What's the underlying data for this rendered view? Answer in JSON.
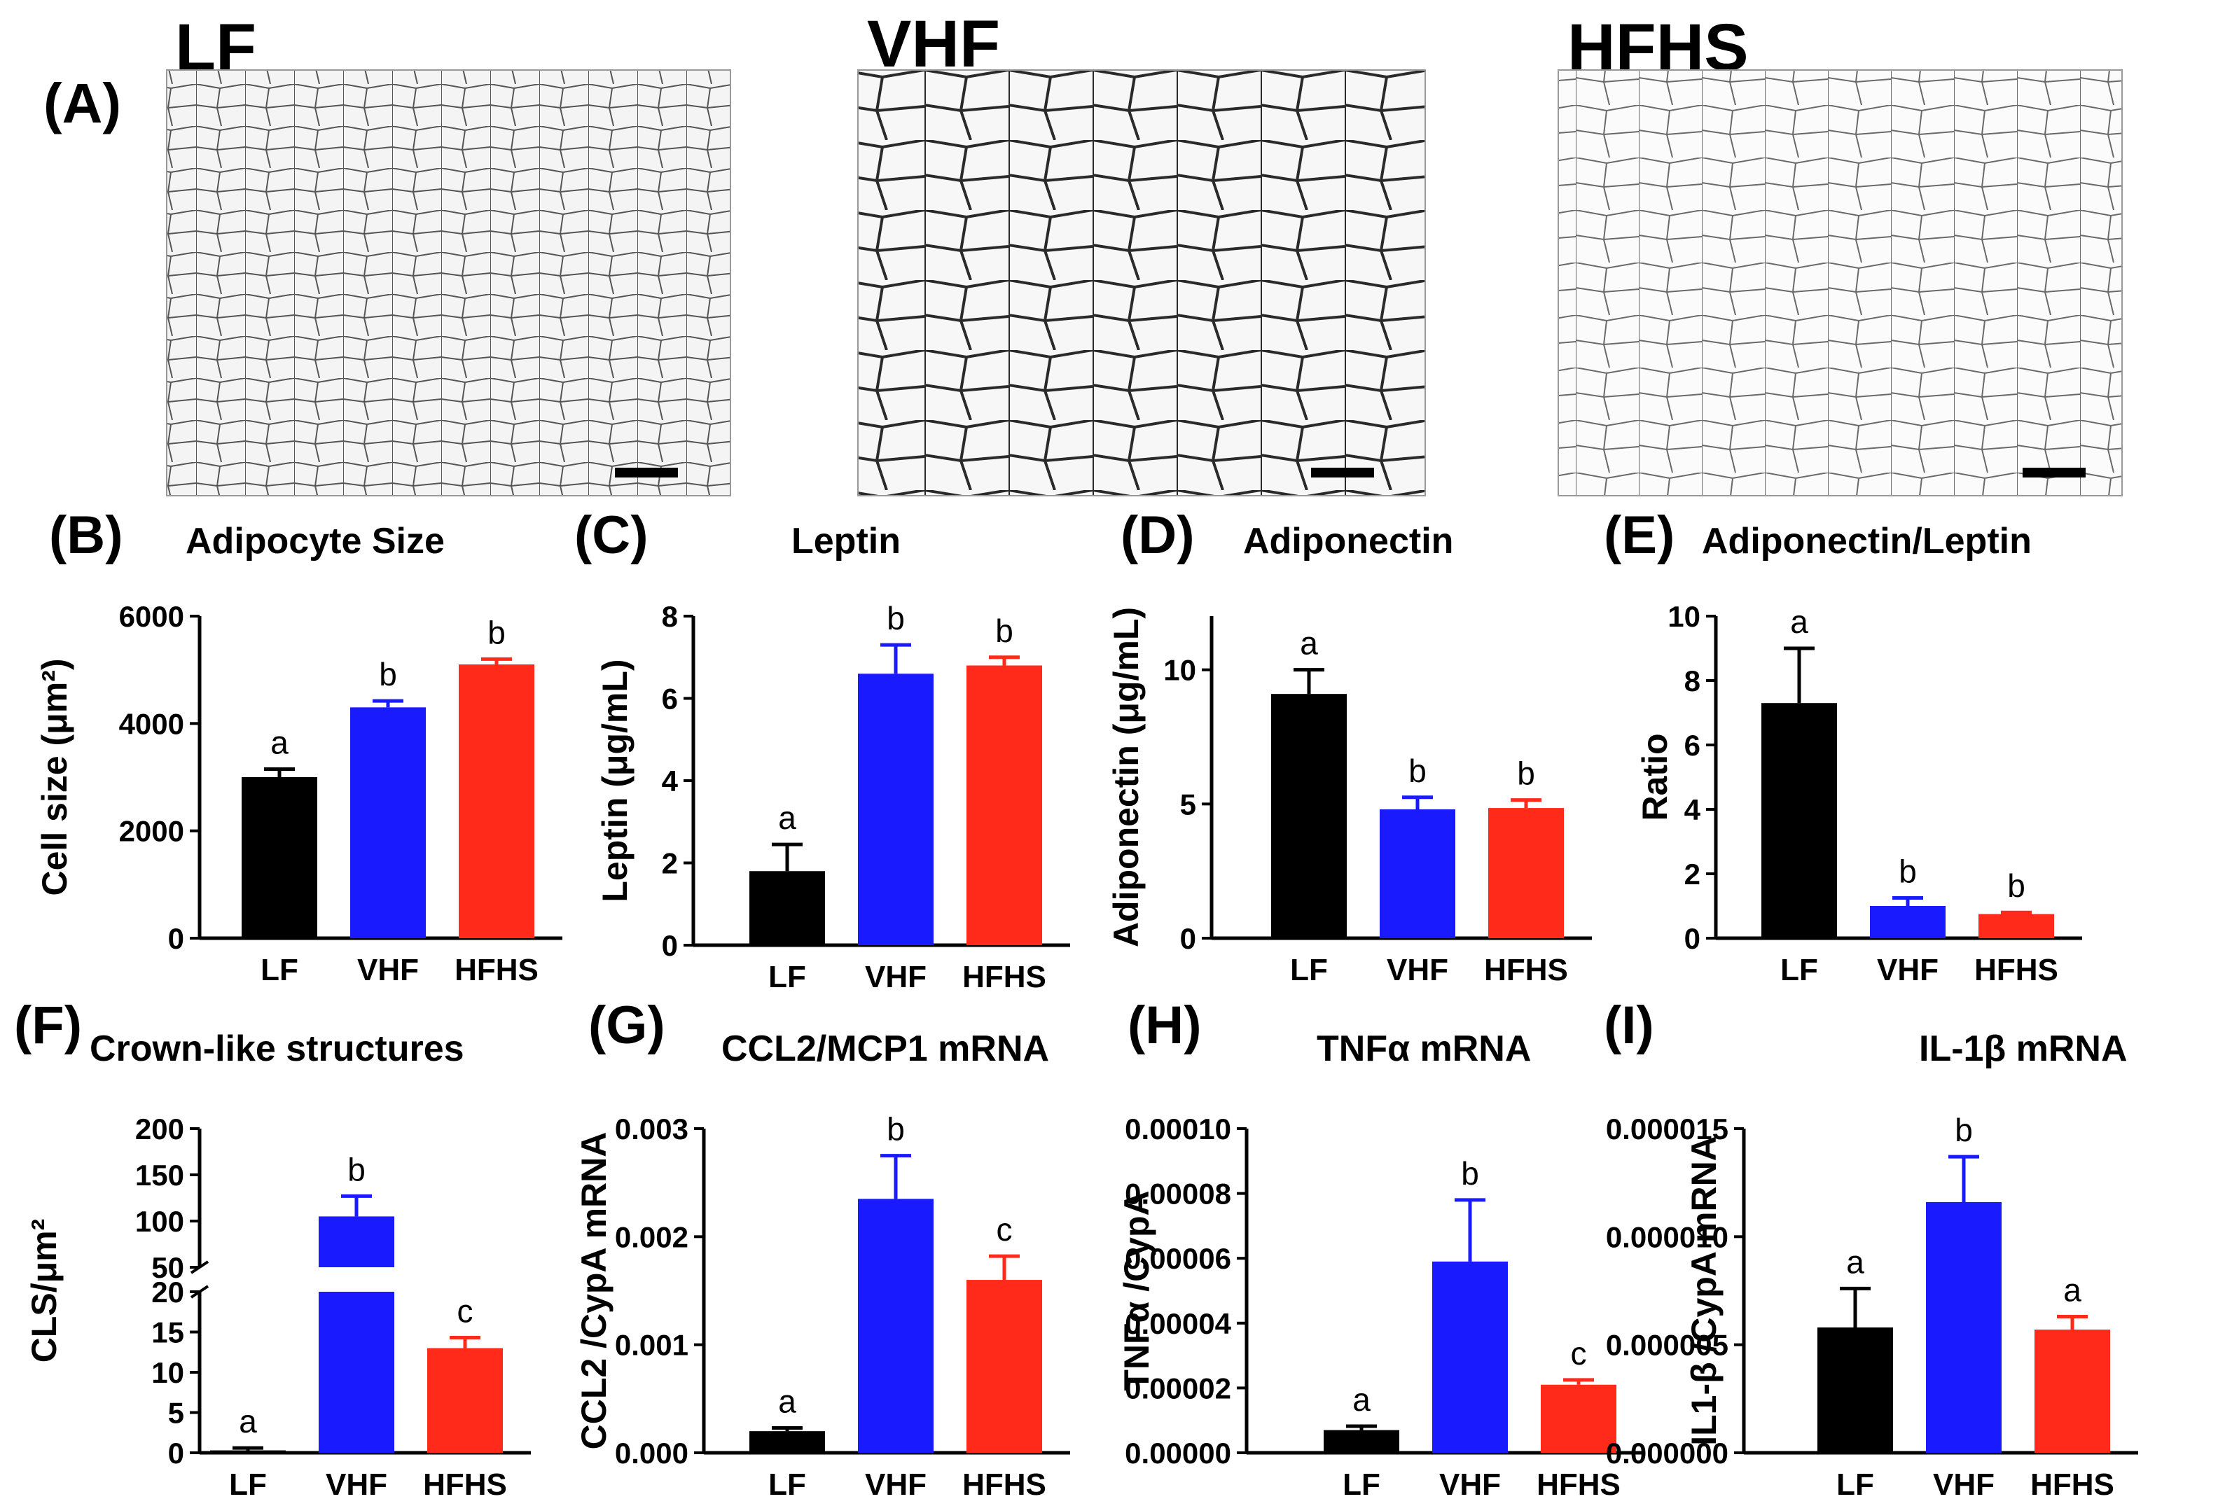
{
  "colors": {
    "LF": "#000000",
    "VHF": "#1a1aff",
    "HFHS": "#ff2a1a",
    "axis": "#000000"
  },
  "panel_a": {
    "label": "(A)",
    "images": [
      {
        "title": "LF",
        "image": "micrograph-lf"
      },
      {
        "title": "VHF",
        "image": "micrograph-vhf"
      },
      {
        "title": "HFHS",
        "image": "micrograph-hfhs"
      }
    ]
  },
  "chart_data": [
    {
      "id": "B",
      "label": "(B)",
      "title": "Adipocyte Size",
      "type": "bar",
      "ylabel": "Cell size (μm²)",
      "ylim": [
        0,
        6000
      ],
      "yticks": [
        "0",
        "2000",
        "4000",
        "6000"
      ],
      "categories": [
        "LF",
        "VHF",
        "HFHS"
      ],
      "values": [
        3000,
        4300,
        5100
      ],
      "errors": [
        150,
        120,
        100
      ],
      "letters": [
        "a",
        "b",
        "b"
      ]
    },
    {
      "id": "C",
      "label": "(C)",
      "title": "Leptin",
      "type": "bar",
      "ylabel": "Leptin (μg/mL)",
      "ylim": [
        0,
        8
      ],
      "yticks": [
        "0",
        "2",
        "4",
        "6",
        "8"
      ],
      "categories": [
        "LF",
        "VHF",
        "HFHS"
      ],
      "values": [
        1.8,
        6.6,
        6.8
      ],
      "errors": [
        0.65,
        0.7,
        0.2
      ],
      "letters": [
        "a",
        "b",
        "b"
      ]
    },
    {
      "id": "D",
      "label": "(D)",
      "title": "Adiponectin",
      "type": "bar",
      "ylabel": "Adiponectin (μg/mL)",
      "ylim": [
        0,
        12
      ],
      "yticks": [
        "0",
        "5",
        "10"
      ],
      "categories": [
        "LF",
        "VHF",
        "HFHS"
      ],
      "values": [
        9.1,
        4.8,
        4.85
      ],
      "errors": [
        0.9,
        0.45,
        0.3
      ],
      "letters": [
        "a",
        "b",
        "b"
      ]
    },
    {
      "id": "E",
      "label": "(E)",
      "title": "Adiponectin/Leptin",
      "type": "bar",
      "ylabel": "Ratio",
      "ylim": [
        0,
        10
      ],
      "yticks": [
        "0",
        "2",
        "4",
        "6",
        "8",
        "10"
      ],
      "categories": [
        "LF",
        "VHF",
        "HFHS"
      ],
      "values": [
        7.3,
        1.0,
        0.75
      ],
      "errors": [
        1.7,
        0.25,
        0.05
      ],
      "letters": [
        "a",
        "b",
        "b"
      ]
    },
    {
      "id": "F",
      "label": "(F)",
      "title": "Crown-like structures",
      "type": "bar",
      "ylabel": "CLS/μm²",
      "broken_axis": {
        "lower": [
          0,
          20
        ],
        "upper": [
          50,
          200
        ]
      },
      "yticks_lower": [
        "0",
        "5",
        "10",
        "15",
        "20"
      ],
      "yticks_upper": [
        "50",
        "100",
        "150",
        "200"
      ],
      "categories": [
        "LF",
        "VHF",
        "HFHS"
      ],
      "values": [
        0.3,
        105,
        13
      ],
      "errors": [
        0.3,
        22,
        1.3
      ],
      "letters": [
        "a",
        "b",
        "c"
      ]
    },
    {
      "id": "G",
      "label": "(G)",
      "title": "CCL2/MCP1 mRNA",
      "type": "bar",
      "ylabel": "CCL2 /CypA mRNA",
      "ylim": [
        0,
        0.003
      ],
      "yticks": [
        "0.000",
        "0.001",
        "0.002",
        "0.003"
      ],
      "categories": [
        "LF",
        "VHF",
        "HFHS"
      ],
      "values": [
        0.0002,
        0.00235,
        0.0016
      ],
      "errors": [
        3e-05,
        0.0004,
        0.00022
      ],
      "letters": [
        "a",
        "b",
        "c"
      ]
    },
    {
      "id": "H",
      "label": "(H)",
      "title": "TNFα mRNA",
      "type": "bar",
      "ylabel": "TNFα /CypA",
      "ylim": [
        0,
        0.0001
      ],
      "yticks": [
        "0.00000",
        "0.00002",
        "0.00004",
        "0.00006",
        "0.00008",
        "0.00010"
      ],
      "categories": [
        "LF",
        "VHF",
        "HFHS"
      ],
      "values": [
        7e-06,
        5.9e-05,
        2.1e-05
      ],
      "errors": [
        1.2e-06,
        1.9e-05,
        1.5e-06
      ],
      "letters": [
        "a",
        "b",
        "c"
      ]
    },
    {
      "id": "I",
      "label": "(I)",
      "title": "IL-1β mRNA",
      "type": "bar",
      "ylabel": "IL1-β /CypA mRNA",
      "ylim": [
        0,
        1.5e-05
      ],
      "yticks": [
        "0.000000",
        "0.000005",
        "0.000010",
        "0.000015"
      ],
      "categories": [
        "LF",
        "VHF",
        "HFHS"
      ],
      "values": [
        5.8e-06,
        1.16e-05,
        5.7e-06
      ],
      "errors": [
        1.8e-06,
        2.1e-06,
        6e-07
      ],
      "letters": [
        "a",
        "b",
        "a"
      ]
    }
  ]
}
